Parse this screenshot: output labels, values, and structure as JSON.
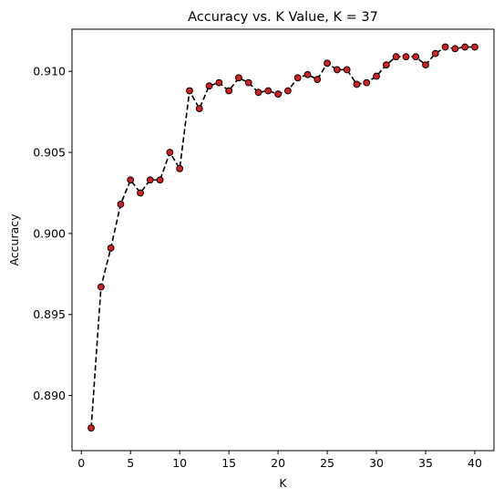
{
  "chart_data": {
    "type": "line",
    "title": "Accuracy vs. K Value, K = 37",
    "xlabel": "K",
    "ylabel": "Accuracy",
    "xlim": [
      -0.95,
      41.95
    ],
    "ylim": [
      0.8866,
      0.9126
    ],
    "grid": false,
    "x_ticks": [
      0,
      5,
      10,
      15,
      20,
      25,
      30,
      35,
      40
    ],
    "x_tick_labels": [
      "0",
      "5",
      "10",
      "15",
      "20",
      "25",
      "30",
      "35",
      "40"
    ],
    "y_ticks": [
      0.89,
      0.895,
      0.9,
      0.905,
      0.91
    ],
    "y_tick_labels": [
      "0.890",
      "0.895",
      "0.900",
      "0.905",
      "0.910"
    ],
    "series": [
      {
        "name": "accuracy",
        "line_style": "dashed",
        "line_color": "#000000",
        "marker": "circle",
        "marker_face_color": "#d62020",
        "marker_edge_color": "#000000",
        "x": [
          1,
          2,
          3,
          4,
          5,
          6,
          7,
          8,
          9,
          10,
          11,
          12,
          13,
          14,
          15,
          16,
          17,
          18,
          19,
          20,
          21,
          22,
          23,
          24,
          25,
          26,
          27,
          28,
          29,
          30,
          31,
          32,
          33,
          34,
          35,
          36,
          37,
          38,
          39,
          40
        ],
        "values": [
          0.888,
          0.8967,
          0.8991,
          0.9018,
          0.9033,
          0.9025,
          0.9033,
          0.9033,
          0.905,
          0.904,
          0.9088,
          0.9077,
          0.9091,
          0.9093,
          0.9088,
          0.9096,
          0.9093,
          0.9087,
          0.9088,
          0.9086,
          0.9088,
          0.9096,
          0.9098,
          0.9095,
          0.9105,
          0.9101,
          0.9101,
          0.9092,
          0.9093,
          0.9097,
          0.9104,
          0.9109,
          0.9109,
          0.9109,
          0.9104,
          0.9111,
          0.9115,
          0.9114,
          0.9115,
          0.9115
        ]
      }
    ]
  }
}
